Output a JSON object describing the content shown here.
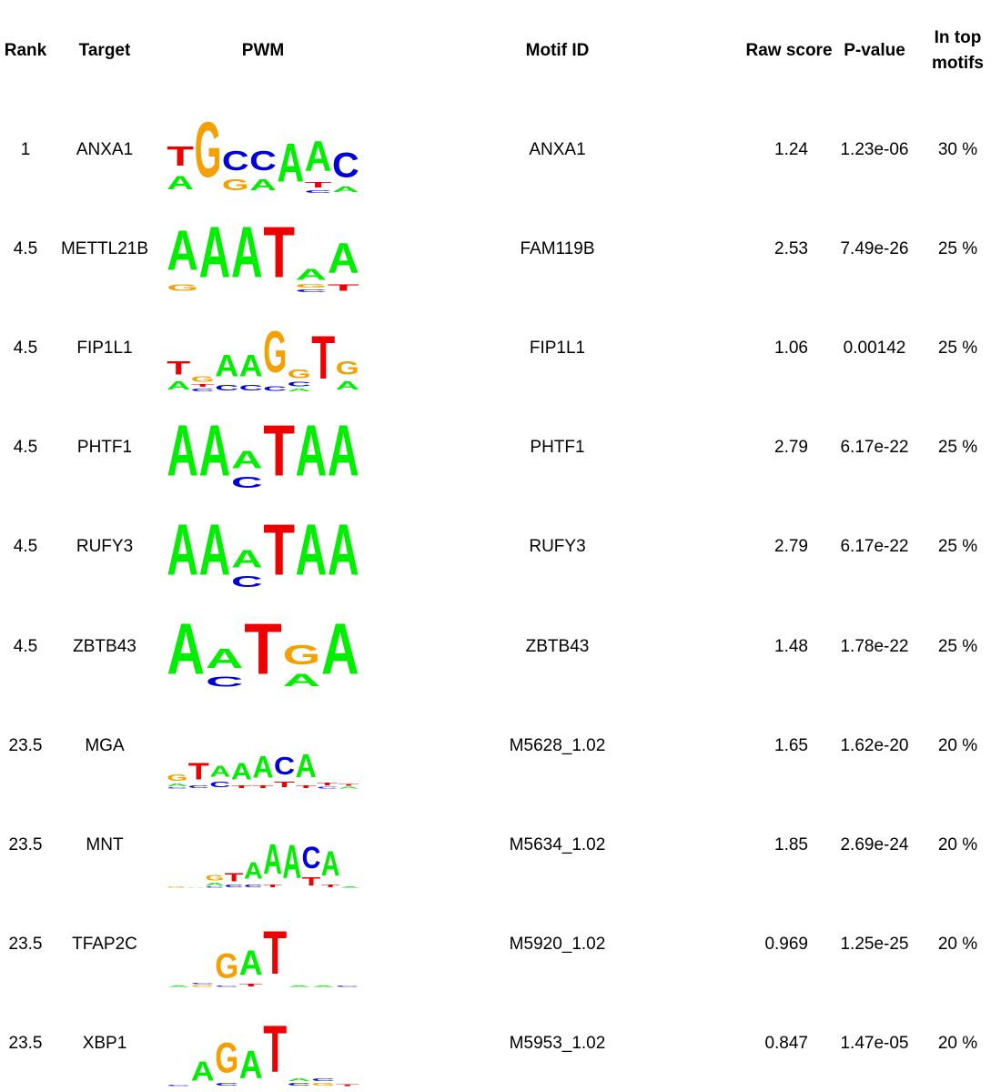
{
  "headers": {
    "rank": "Rank",
    "target": "Target",
    "pwm": "PWM",
    "motif_id": "Motif ID",
    "raw_score": "Raw score",
    "p_value": "P-value",
    "in_top_line1": "In top",
    "in_top_line2": "motifs"
  },
  "nucleotide_colors": {
    "A": "#00ee00",
    "C": "#0000dd",
    "G": "#f5a000",
    "T": "#ee0000"
  },
  "rows": [
    {
      "rank": "1",
      "target": "ANXA1",
      "motif_id": "ANXA1",
      "raw_score": "1.24",
      "p_value": "1.23e-06",
      "in_top": "30 %",
      "logo": [
        [
          [
            "A",
            0.25
          ],
          [
            "T",
            0.35
          ]
        ],
        [
          [
            "G",
            1.0
          ]
        ],
        [
          [
            "G",
            0.2
          ],
          [
            "C",
            0.35
          ]
        ],
        [
          [
            "A",
            0.2
          ],
          [
            "C",
            0.35
          ]
        ],
        [
          [
            "A",
            0.7
          ]
        ],
        [
          [
            "C",
            0.05
          ],
          [
            "T",
            0.1
          ],
          [
            "A",
            0.55
          ]
        ],
        [
          [
            "A",
            0.1
          ],
          [
            "C",
            0.45
          ]
        ]
      ]
    },
    {
      "rank": "4.5",
      "target": "METTL21B",
      "motif_id": "FAM119B",
      "raw_score": "2.53",
      "p_value": "7.49e-26",
      "in_top": "25 %",
      "logo": [
        [
          [
            "G",
            0.12
          ],
          [
            "A",
            0.72
          ]
        ],
        [
          [
            "A",
            0.92
          ]
        ],
        [
          [
            "A",
            0.92
          ]
        ],
        [
          [
            "T",
            0.92
          ]
        ],
        [
          [
            "C",
            0.05
          ],
          [
            "G",
            0.06
          ],
          [
            "A",
            0.2
          ]
        ],
        [
          [
            "T",
            0.12
          ],
          [
            "A",
            0.55
          ]
        ]
      ]
    },
    {
      "rank": "4.5",
      "target": "FIP1L1",
      "motif_id": "FIP1L1",
      "raw_score": "1.06",
      "p_value": "0.00142",
      "in_top": "25 %",
      "logo": [
        [
          [
            "A",
            0.15
          ],
          [
            "T",
            0.25
          ]
        ],
        [
          [
            "C",
            0.05
          ],
          [
            "T",
            0.05
          ],
          [
            "G",
            0.1
          ]
        ],
        [
          [
            "C",
            0.1
          ],
          [
            "A",
            0.4
          ]
        ],
        [
          [
            "C",
            0.1
          ],
          [
            "A",
            0.4
          ]
        ],
        [
          [
            "C",
            0.08
          ],
          [
            "G",
            0.75
          ]
        ],
        [
          [
            "A",
            0.05
          ],
          [
            "C",
            0.08
          ],
          [
            "G",
            0.16
          ]
        ],
        [
          [
            "T",
            0.78
          ]
        ],
        [
          [
            "A",
            0.15
          ],
          [
            "G",
            0.25
          ]
        ]
      ]
    },
    {
      "rank": "4.5",
      "target": "PHTF1",
      "motif_id": "PHTF1",
      "raw_score": "2.79",
      "p_value": "6.17e-22",
      "in_top": "25 %",
      "logo": [
        [
          [
            "A",
            0.92
          ]
        ],
        [
          [
            "A",
            0.92
          ]
        ],
        [
          [
            "C",
            0.2
          ],
          [
            "A",
            0.32
          ]
        ],
        [
          [
            "T",
            0.92
          ]
        ],
        [
          [
            "A",
            0.92
          ]
        ],
        [
          [
            "A",
            0.92
          ]
        ]
      ]
    },
    {
      "rank": "4.5",
      "target": "RUFY3",
      "motif_id": "RUFY3",
      "raw_score": "2.79",
      "p_value": "6.17e-22",
      "in_top": "25 %",
      "logo": [
        [
          [
            "A",
            0.92
          ]
        ],
        [
          [
            "A",
            0.92
          ]
        ],
        [
          [
            "C",
            0.2
          ],
          [
            "A",
            0.32
          ]
        ],
        [
          [
            "T",
            0.92
          ]
        ],
        [
          [
            "A",
            0.92
          ]
        ],
        [
          [
            "A",
            0.92
          ]
        ]
      ]
    },
    {
      "rank": "4.5",
      "target": "ZBTB43",
      "motif_id": "ZBTB43",
      "raw_score": "1.48",
      "p_value": "1.78e-22",
      "in_top": "25 %",
      "logo": [
        [
          [
            "A",
            0.92
          ]
        ],
        [
          [
            "C",
            0.18
          ],
          [
            "A",
            0.35
          ]
        ],
        [
          [
            "T",
            0.92
          ]
        ],
        [
          [
            "A",
            0.22
          ],
          [
            "G",
            0.35
          ]
        ],
        [
          [
            "A",
            0.92
          ]
        ]
      ]
    },
    {
      "rank": "23.5",
      "target": "MGA",
      "motif_id": "M5628_1.02",
      "raw_score": "1.65",
      "p_value": "1.62e-20",
      "in_top": "20 %",
      "logo": [
        [
          [
            "C",
            0.02
          ],
          [
            "A",
            0.05
          ],
          [
            "G",
            0.12
          ]
        ],
        [
          [
            "C",
            0.05
          ],
          [
            "T",
            0.3
          ]
        ],
        [
          [
            "C",
            0.1
          ],
          [
            "A",
            0.2
          ]
        ],
        [
          [
            "T",
            0.05
          ],
          [
            "A",
            0.3
          ]
        ],
        [
          [
            "T",
            0.05
          ],
          [
            "A",
            0.4
          ]
        ],
        [
          [
            "T",
            0.1
          ],
          [
            "C",
            0.32
          ]
        ],
        [
          [
            "T",
            0.05
          ],
          [
            "A",
            0.42
          ]
        ],
        [
          [
            "C",
            0.03
          ],
          [
            "T",
            0.05
          ]
        ],
        [
          [
            "A",
            0.03
          ],
          [
            "T",
            0.03
          ]
        ]
      ]
    },
    {
      "rank": "23.5",
      "target": "MNT",
      "motif_id": "M5634_1.02",
      "raw_score": "1.85",
      "p_value": "2.69e-24",
      "in_top": "20 %",
      "logo": [
        [
          [
            "G",
            0.02
          ]
        ],
        [
          [
            "A",
            0.01
          ]
        ],
        [
          [
            "C",
            0.02
          ],
          [
            "A",
            0.05
          ],
          [
            "G",
            0.1
          ]
        ],
        [
          [
            "C",
            0.05
          ],
          [
            "T",
            0.15
          ]
        ],
        [
          [
            "C",
            0.05
          ],
          [
            "A",
            0.3
          ]
        ],
        [
          [
            "T",
            0.05
          ],
          [
            "A",
            0.55
          ]
        ],
        [
          [
            "A",
            0.6
          ]
        ],
        [
          [
            "T",
            0.15
          ],
          [
            "C",
            0.4
          ]
        ],
        [
          [
            "T",
            0.05
          ],
          [
            "A",
            0.45
          ]
        ],
        [
          [
            "A",
            0.02
          ]
        ]
      ]
    },
    {
      "rank": "23.5",
      "target": "TFAP2C",
      "motif_id": "M5920_1.02",
      "raw_score": "0.969",
      "p_value": "1.25e-25",
      "in_top": "20 %",
      "logo": [
        [
          [
            "A",
            0.02
          ]
        ],
        [
          [
            "G",
            0.03
          ],
          [
            "C",
            0.02
          ]
        ],
        [
          [
            "C",
            0.02
          ],
          [
            "G",
            0.45
          ]
        ],
        [
          [
            "T",
            0.05
          ],
          [
            "A",
            0.45
          ]
        ],
        [
          [
            "T",
            0.78
          ]
        ],
        [
          [
            "A",
            0.02
          ]
        ],
        [
          [
            "A",
            0.02
          ]
        ],
        [
          [
            "C",
            0.02
          ]
        ]
      ]
    },
    {
      "rank": "23.5",
      "target": "XBP1",
      "motif_id": "M5953_1.02",
      "raw_score": "0.847",
      "p_value": "1.47e-05",
      "in_top": "20 %",
      "logo": [
        [
          [
            "C",
            0.02
          ]
        ],
        [
          [
            "A",
            0.35
          ]
        ],
        [
          [
            "C",
            0.05
          ],
          [
            "G",
            0.55
          ]
        ],
        [
          [
            "A",
            0.5
          ]
        ],
        [
          [
            "T",
            0.85
          ]
        ],
        [
          [
            "C",
            0.05
          ],
          [
            "A",
            0.05
          ]
        ],
        [
          [
            "G",
            0.05
          ],
          [
            "C",
            0.05
          ]
        ],
        [
          [
            "T",
            0.03
          ]
        ]
      ]
    }
  ]
}
